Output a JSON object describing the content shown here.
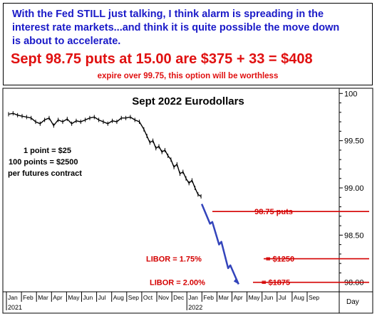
{
  "header": {
    "line1": "With the Fed STILL just talking, I think alarm is spreading in the",
    "line2": "interest rate markets...and think it is quite possible the move down",
    "line3": "is about to accelerate.",
    "headline": "Sept 98.75 puts at 15.00 are $375 + 33 = $408",
    "subline": "expire over 99.75, this option will be worthless"
  },
  "colors": {
    "header_text": "#1a1ac8",
    "headline": "#e01010",
    "price": "#000000",
    "projection": "#3344bb",
    "level_lines": "#d40000"
  },
  "chart_data": {
    "type": "line",
    "title": "Sept 2022 Eurodollars",
    "xlabel": "Day",
    "ylabel": "",
    "ylim": [
      97.9,
      100.04
    ],
    "yticks": [
      98.0,
      98.5,
      99.0,
      99.5,
      100.0
    ],
    "ytick_labels": [
      "98.00",
      "98.50",
      "99.00",
      "99.50",
      "100"
    ],
    "months": [
      "Jan",
      "Feb",
      "Mar",
      "Apr",
      "May",
      "Jun",
      "Jul",
      "Aug",
      "Sep",
      "Oct",
      "Nov",
      "Dec",
      "Jan",
      "Feb",
      "Mar",
      "Apr",
      "May",
      "Jun",
      "Jul",
      "Aug",
      "Sep"
    ],
    "years": [
      {
        "label": "2021",
        "month_index": 0
      },
      {
        "label": "2022",
        "month_index": 12
      }
    ],
    "grid": false,
    "legend": "none",
    "series": [
      {
        "kind": "price",
        "x_month": [
          0.0,
          0.3,
          0.6,
          0.9,
          1.2,
          1.5,
          1.8,
          2.1,
          2.4,
          2.7,
          3.0,
          3.3,
          3.6,
          3.9,
          4.2,
          4.5,
          4.8,
          5.1,
          5.4,
          5.7,
          6.0,
          6.3,
          6.6,
          6.9,
          7.2,
          7.5,
          7.8,
          8.1,
          8.4,
          8.7,
          9.0,
          9.2,
          9.4,
          9.6,
          9.8,
          10.0,
          10.2,
          10.4,
          10.6,
          10.8,
          11.0,
          11.2,
          11.4,
          11.6,
          11.8,
          12.0,
          12.2,
          12.4,
          12.6,
          12.8
        ],
        "y": [
          99.78,
          99.79,
          99.77,
          99.76,
          99.75,
          99.74,
          99.7,
          99.68,
          99.72,
          99.74,
          99.66,
          99.72,
          99.7,
          99.73,
          99.68,
          99.71,
          99.7,
          99.72,
          99.74,
          99.75,
          99.72,
          99.7,
          99.68,
          99.71,
          99.7,
          99.74,
          99.74,
          99.75,
          99.72,
          99.7,
          99.62,
          99.55,
          99.48,
          99.5,
          99.42,
          99.44,
          99.38,
          99.4,
          99.34,
          99.3,
          99.22,
          99.25,
          99.15,
          99.17,
          99.1,
          99.05,
          99.08,
          99.0,
          98.93,
          98.91
        ]
      },
      {
        "kind": "projection",
        "x_month": [
          12.85,
          13.4,
          13.55,
          14.0,
          14.15,
          14.6,
          14.75,
          15.3
        ],
        "y": [
          98.83,
          98.62,
          98.64,
          98.4,
          98.43,
          98.15,
          98.18,
          97.98
        ]
      }
    ],
    "annotations": [
      {
        "text": "1 point = $25",
        "color": "#000000"
      },
      {
        "text": "100 points = $2500",
        "color": "#000000"
      },
      {
        "text": "per futures contract",
        "color": "#000000"
      },
      {
        "text": "98.75 puts",
        "color": "#d40000",
        "level": 98.75
      },
      {
        "text": "LIBOR = 1.75%",
        "color": "#d40000",
        "level": 98.25
      },
      {
        "text": "= $1250",
        "color": "#d40000",
        "level": 98.25
      },
      {
        "text": "LIBOR = 2.00%",
        "color": "#d40000",
        "level": 98.0
      },
      {
        "text": "= $1875",
        "color": "#d40000",
        "level": 98.0
      }
    ]
  }
}
